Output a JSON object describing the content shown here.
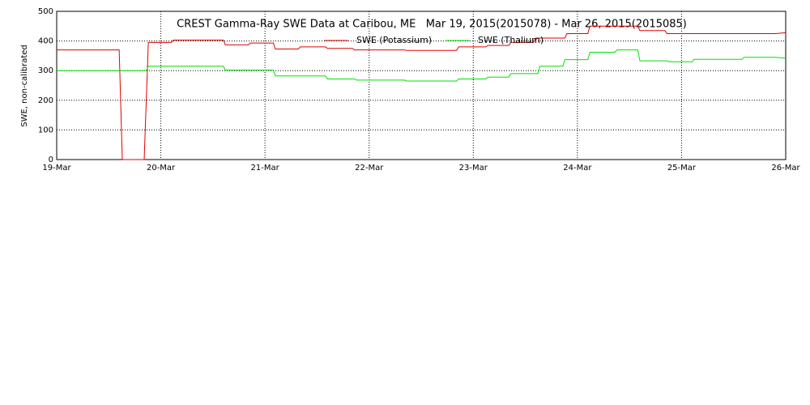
{
  "chart_data": {
    "type": "line",
    "title": "CREST Gamma-Ray SWE Data at Caribou, ME   Mar 19, 2015(2015078) - Mar 26, 2015(2015085)",
    "ylabel": "SWE, non-calibrated",
    "xlim": [
      0,
      7
    ],
    "xticks": [
      {
        "value": 0,
        "label": "19-Mar"
      },
      {
        "value": 1,
        "label": "20-Mar"
      },
      {
        "value": 2,
        "label": "21-Mar"
      },
      {
        "value": 3,
        "label": "22-Mar"
      },
      {
        "value": 4,
        "label": "23-Mar"
      },
      {
        "value": 5,
        "label": "24-Mar"
      },
      {
        "value": 6,
        "label": "25-Mar"
      },
      {
        "value": 7,
        "label": "26-Mar"
      }
    ],
    "ylim": [
      0,
      500
    ],
    "yticks": [
      0,
      100,
      200,
      300,
      400,
      500
    ],
    "grid": true,
    "series": [
      {
        "name": "SWE (Potassium)",
        "color": "#e00000",
        "x": [
          0,
          0.6,
          0.63,
          0.84,
          0.88,
          1.1,
          1.12,
          1.6,
          1.62,
          1.84,
          1.86,
          2.08,
          2.1,
          2.32,
          2.34,
          2.58,
          2.6,
          2.84,
          2.86,
          3.34,
          3.36,
          3.84,
          3.86,
          4.12,
          4.14,
          4.34,
          4.36,
          4.58,
          4.6,
          4.88,
          4.9,
          5.1,
          5.12,
          5.58,
          5.6,
          5.84,
          5.86,
          6.9,
          7
        ],
        "values": [
          370,
          370,
          0,
          0,
          395,
          395,
          403,
          403,
          387,
          387,
          393,
          393,
          373,
          373,
          380,
          380,
          375,
          375,
          370,
          370,
          368,
          368,
          380,
          380,
          385,
          385,
          395,
          395,
          410,
          410,
          425,
          425,
          450,
          450,
          435,
          435,
          425,
          425,
          428
        ]
      },
      {
        "name": "SWE (Thalium)",
        "color": "#00e000",
        "x": [
          0,
          0.86,
          0.88,
          1.6,
          1.62,
          2.08,
          2.1,
          2.58,
          2.6,
          2.86,
          2.88,
          3.34,
          3.36,
          3.84,
          3.86,
          4.12,
          4.14,
          4.34,
          4.36,
          4.62,
          4.64,
          4.86,
          4.88,
          5.1,
          5.12,
          5.36,
          5.38,
          5.58,
          5.6,
          5.86,
          5.88,
          6.1,
          6.12,
          6.58,
          6.6,
          6.9,
          7
        ],
        "values": [
          300,
          300,
          315,
          315,
          302,
          302,
          282,
          282,
          272,
          272,
          268,
          268,
          265,
          265,
          272,
          272,
          278,
          278,
          290,
          290,
          315,
          315,
          337,
          337,
          362,
          362,
          370,
          370,
          333,
          333,
          330,
          330,
          338,
          338,
          345,
          345,
          342
        ]
      }
    ]
  }
}
